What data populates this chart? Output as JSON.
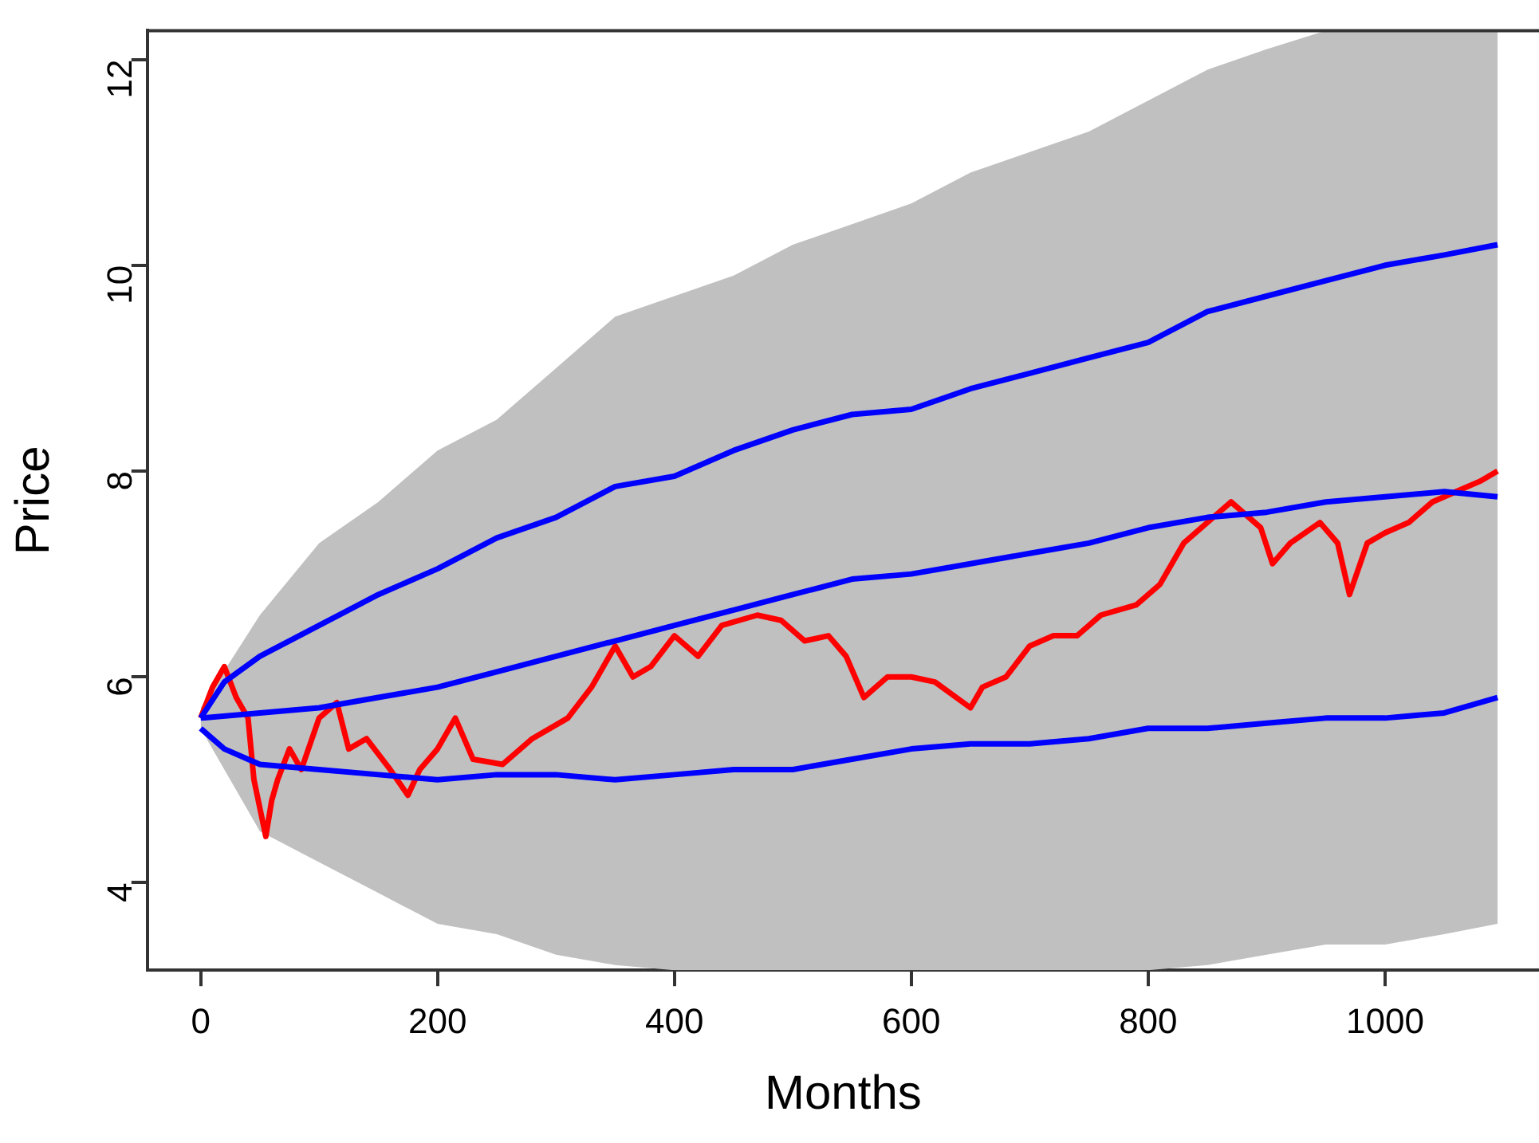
{
  "chart_data": {
    "type": "line",
    "xlabel": "Months",
    "ylabel": "Price",
    "xlim": [
      -45,
      1130
    ],
    "ylim": [
      3.15,
      12.28
    ],
    "xticks": [
      0,
      200,
      400,
      600,
      800,
      1000
    ],
    "yticks": [
      4,
      6,
      8,
      10,
      12
    ],
    "grid": false,
    "legend": false,
    "marker": "none",
    "line_style": "solid",
    "series": [
      {
        "color": "#0000ff",
        "x": [
          0,
          50,
          100,
          150,
          200,
          250,
          300,
          350,
          400,
          450,
          500,
          550,
          600,
          650,
          700,
          750,
          800,
          850,
          900,
          950,
          1000,
          1050,
          1095
        ],
        "values": [
          5.6,
          5.65,
          5.7,
          5.8,
          5.9,
          6.05,
          6.2,
          6.35,
          6.5,
          6.65,
          6.8,
          6.95,
          7.0,
          7.1,
          7.2,
          7.3,
          7.45,
          7.55,
          7.6,
          7.7,
          7.75,
          7.8,
          7.75
        ],
        "lower": [
          5.5,
          4.5,
          4.2,
          3.9,
          3.6,
          3.5,
          3.3,
          3.2,
          3.15,
          3.15,
          3.15,
          3.15,
          3.15,
          3.15,
          3.15,
          3.15,
          3.15,
          3.2,
          3.3,
          3.4,
          3.4,
          3.5,
          3.6
        ],
        "upper": [
          5.7,
          6.6,
          7.3,
          7.7,
          8.2,
          8.5,
          9.0,
          9.5,
          9.7,
          9.9,
          10.2,
          10.4,
          10.6,
          10.9,
          11.1,
          11.3,
          11.6,
          11.9,
          12.1,
          12.28,
          12.28,
          12.28,
          12.28
        ]
      },
      {
        "color": "#0000ff",
        "x": [
          0,
          20,
          50,
          100,
          150,
          200,
          250,
          300,
          350,
          400,
          450,
          500,
          550,
          600,
          650,
          700,
          750,
          800,
          850,
          900,
          950,
          1000,
          1050,
          1095
        ],
        "values": [
          5.6,
          5.95,
          6.2,
          6.5,
          6.8,
          7.05,
          7.35,
          7.55,
          7.85,
          7.95,
          8.2,
          8.4,
          8.55,
          8.6,
          8.8,
          8.95,
          9.1,
          9.25,
          9.55,
          9.7,
          9.85,
          10.0,
          10.1,
          10.2
        ]
      },
      {
        "color": "#0000ff",
        "x": [
          0,
          20,
          50,
          100,
          150,
          200,
          250,
          300,
          350,
          400,
          450,
          500,
          550,
          600,
          650,
          700,
          750,
          800,
          850,
          900,
          950,
          1000,
          1050,
          1095
        ],
        "values": [
          5.5,
          5.3,
          5.15,
          5.1,
          5.05,
          5.0,
          5.05,
          5.05,
          5.0,
          5.05,
          5.1,
          5.1,
          5.2,
          5.3,
          5.35,
          5.35,
          5.4,
          5.5,
          5.5,
          5.55,
          5.6,
          5.6,
          5.65,
          5.8
        ]
      },
      {
        "color": "#ff0000",
        "x": [
          0,
          10,
          20,
          30,
          40,
          45,
          55,
          60,
          65,
          75,
          85,
          100,
          115,
          125,
          140,
          160,
          175,
          185,
          200,
          215,
          230,
          255,
          280,
          310,
          330,
          350,
          365,
          380,
          400,
          420,
          440,
          470,
          490,
          510,
          530,
          545,
          560,
          580,
          600,
          620,
          650,
          660,
          680,
          700,
          720,
          740,
          760,
          790,
          810,
          830,
          860,
          870,
          880,
          895,
          905,
          920,
          945,
          960,
          970,
          985,
          1000,
          1020,
          1040,
          1060,
          1080,
          1095
        ],
        "values": [
          5.6,
          5.9,
          6.1,
          5.8,
          5.6,
          5.0,
          4.45,
          4.8,
          5.0,
          5.3,
          5.1,
          5.6,
          5.75,
          5.3,
          5.4,
          5.1,
          4.85,
          5.1,
          5.3,
          5.6,
          5.2,
          5.15,
          5.4,
          5.6,
          5.9,
          6.3,
          6.0,
          6.1,
          6.4,
          6.2,
          6.5,
          6.6,
          6.55,
          6.35,
          6.4,
          6.2,
          5.8,
          6.0,
          6.0,
          5.95,
          5.7,
          5.9,
          6.0,
          6.3,
          6.4,
          6.4,
          6.6,
          6.7,
          6.9,
          7.3,
          7.6,
          7.7,
          7.6,
          7.45,
          7.1,
          7.3,
          7.5,
          7.3,
          6.8,
          7.3,
          7.4,
          7.5,
          7.7,
          7.8,
          7.9,
          8.0
        ]
      }
    ]
  }
}
